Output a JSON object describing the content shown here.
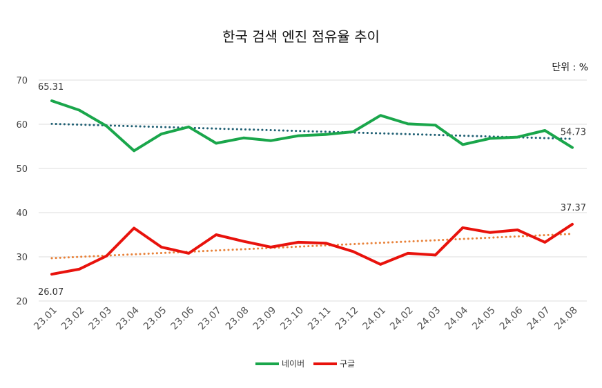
{
  "chart_data": {
    "type": "line",
    "title": "한국 검색 엔진 점유율 추이",
    "unit_label": "단위 : %",
    "categories": [
      "23.01",
      "23.02",
      "23.03",
      "23.04",
      "23.05",
      "23.06",
      "23.07",
      "23.08",
      "23.09",
      "23.10",
      "23.11",
      "23.12",
      "24.01",
      "24.02",
      "24.03",
      "24.04",
      "24.05",
      "24.06",
      "24.07",
      "24.08"
    ],
    "ylim": [
      20,
      70
    ],
    "yticks": [
      20,
      30,
      40,
      50,
      60,
      70
    ],
    "grid": true,
    "legend_position": "bottom",
    "series": [
      {
        "name": "네이버",
        "color": "#1aa64b",
        "values": [
          65.31,
          63.2,
          59.6,
          54.0,
          57.8,
          59.4,
          55.7,
          56.9,
          56.3,
          57.4,
          57.7,
          58.3,
          62.0,
          60.1,
          59.8,
          55.4,
          56.8,
          57.1,
          58.6,
          54.73
        ],
        "trendline": {
          "color": "#1f5f73",
          "start": 60.1,
          "end": 56.7
        }
      },
      {
        "name": "구글",
        "color": "#e8120c",
        "values": [
          26.07,
          27.2,
          30.2,
          36.5,
          32.2,
          30.8,
          35.0,
          33.5,
          32.2,
          33.3,
          33.1,
          31.2,
          28.3,
          30.8,
          30.4,
          36.6,
          35.5,
          36.1,
          33.3,
          37.37
        ],
        "trendline": {
          "color": "#e8823a",
          "start": 29.7,
          "end": 35.2
        }
      }
    ],
    "data_labels": [
      {
        "series": 0,
        "index": 0,
        "text": "65.31"
      },
      {
        "series": 0,
        "index": 19,
        "text": "54.73"
      },
      {
        "series": 1,
        "index": 0,
        "text": "26.07"
      },
      {
        "series": 1,
        "index": 19,
        "text": "37.37"
      }
    ]
  }
}
